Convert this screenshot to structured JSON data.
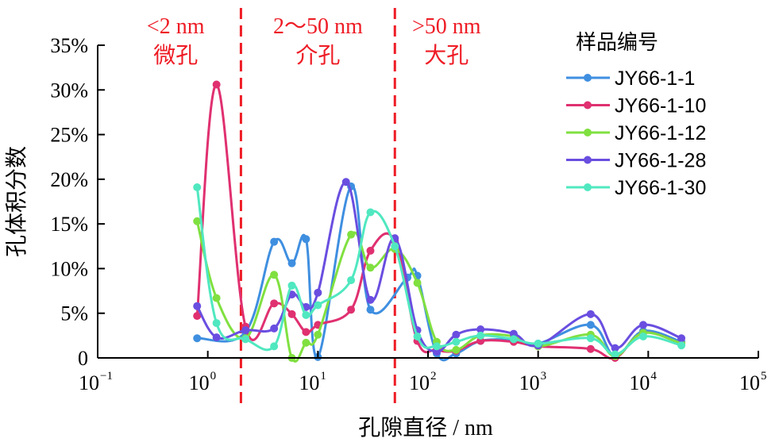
{
  "chart_data": {
    "type": "line",
    "title": "",
    "xlabel": "孔隙直径 / nm",
    "ylabel": "孔体积分数",
    "x_scale": "log",
    "xlim": [
      0.1,
      100000
    ],
    "ylim": [
      0,
      35
    ],
    "y_unit": "%",
    "x_ticks": [
      {
        "base": "10",
        "exp": "−1",
        "value": 0.1
      },
      {
        "base": "10",
        "exp": "0",
        "value": 1
      },
      {
        "base": "10",
        "exp": "1",
        "value": 10
      },
      {
        "base": "10",
        "exp": "2",
        "value": 100
      },
      {
        "base": "10",
        "exp": "3",
        "value": 1000
      },
      {
        "base": "10",
        "exp": "4",
        "value": 10000
      },
      {
        "base": "10",
        "exp": "5",
        "value": 100000
      }
    ],
    "y_ticks": [
      {
        "label": "0",
        "value": 0
      },
      {
        "label": "5%",
        "value": 5
      },
      {
        "label": "10%",
        "value": 10
      },
      {
        "label": "15%",
        "value": 15
      },
      {
        "label": "20%",
        "value": 20
      },
      {
        "label": "25%",
        "value": 25
      },
      {
        "label": "30%",
        "value": 30
      },
      {
        "label": "35%",
        "value": 35
      }
    ],
    "grid": false,
    "legend": {
      "title": "样品编号",
      "position": "top-right"
    },
    "regions": [
      {
        "boundary_x": 2,
        "line1": "<2 nm",
        "line2": "微孔"
      },
      {
        "boundary_x": 50,
        "line1": "2～50 nm",
        "line2": "介孔"
      },
      {
        "line1": ">50 nm",
        "line2": "大孔"
      }
    ],
    "region_color": "#ee1c25",
    "series": [
      {
        "name": "JY66-1-1",
        "color": "#3f8fe0",
        "x": [
          0.8,
          2.2,
          4,
          5.8,
          7.8,
          10,
          20,
          30,
          65,
          80,
          120,
          180,
          300,
          600,
          1000,
          3000,
          5000,
          9000,
          20000
        ],
        "y": [
          2.2,
          2.9,
          13.0,
          10.6,
          13.3,
          0.1,
          19.2,
          5.4,
          9.0,
          9.2,
          0.5,
          0.5,
          1.9,
          2.0,
          1.6,
          3.7,
          0.2,
          3.0,
          1.8
        ]
      },
      {
        "name": "JY66-1-10",
        "color": "#e03070",
        "x": [
          0.8,
          1.2,
          2.2,
          4,
          5.8,
          7.8,
          10,
          20,
          30,
          50,
          80,
          120,
          180,
          300,
          600,
          1000,
          3000,
          5000,
          9000,
          20000
        ],
        "y": [
          4.7,
          30.6,
          3.5,
          6.1,
          4.9,
          2.9,
          3.7,
          5.4,
          12.0,
          13.1,
          1.9,
          0.9,
          0.8,
          1.9,
          1.8,
          1.3,
          1.0,
          0.0,
          2.8,
          1.6
        ]
      },
      {
        "name": "JY66-1-12",
        "color": "#80e040",
        "x": [
          0.8,
          1.2,
          2.2,
          4,
          5.8,
          7.8,
          10,
          20,
          30,
          50,
          80,
          120,
          180,
          300,
          600,
          1000,
          3000,
          5000,
          9000,
          20000
        ],
        "y": [
          15.3,
          6.7,
          2.2,
          9.3,
          0.0,
          1.7,
          2.6,
          13.8,
          10.1,
          12.2,
          8.4,
          1.8,
          0.9,
          2.5,
          2.4,
          1.3,
          2.6,
          0.2,
          2.8,
          1.6
        ]
      },
      {
        "name": "JY66-1-28",
        "color": "#6a4ee0",
        "x": [
          0.8,
          1.2,
          2.2,
          4,
          5.8,
          7.8,
          10,
          18,
          30,
          50,
          80,
          120,
          180,
          300,
          600,
          1000,
          3000,
          5000,
          9000,
          20000
        ],
        "y": [
          5.8,
          2.3,
          3.1,
          3.3,
          7.1,
          5.7,
          7.3,
          19.7,
          6.5,
          13.4,
          3.1,
          0.7,
          2.6,
          3.2,
          2.7,
          1.4,
          4.9,
          1.1,
          3.7,
          2.2
        ]
      },
      {
        "name": "JY66-1-30",
        "color": "#50e8c0",
        "x": [
          0.8,
          1.2,
          2.2,
          4,
          5.8,
          7.8,
          10,
          20,
          30,
          50,
          80,
          120,
          180,
          300,
          600,
          1000,
          3000,
          5000,
          9000,
          20000
        ],
        "y": [
          19.1,
          3.9,
          2.1,
          1.3,
          8.1,
          4.8,
          5.9,
          8.7,
          16.3,
          12.5,
          2.4,
          1.3,
          1.8,
          2.5,
          2.1,
          1.6,
          2.2,
          0.4,
          2.4,
          1.4
        ]
      }
    ]
  }
}
